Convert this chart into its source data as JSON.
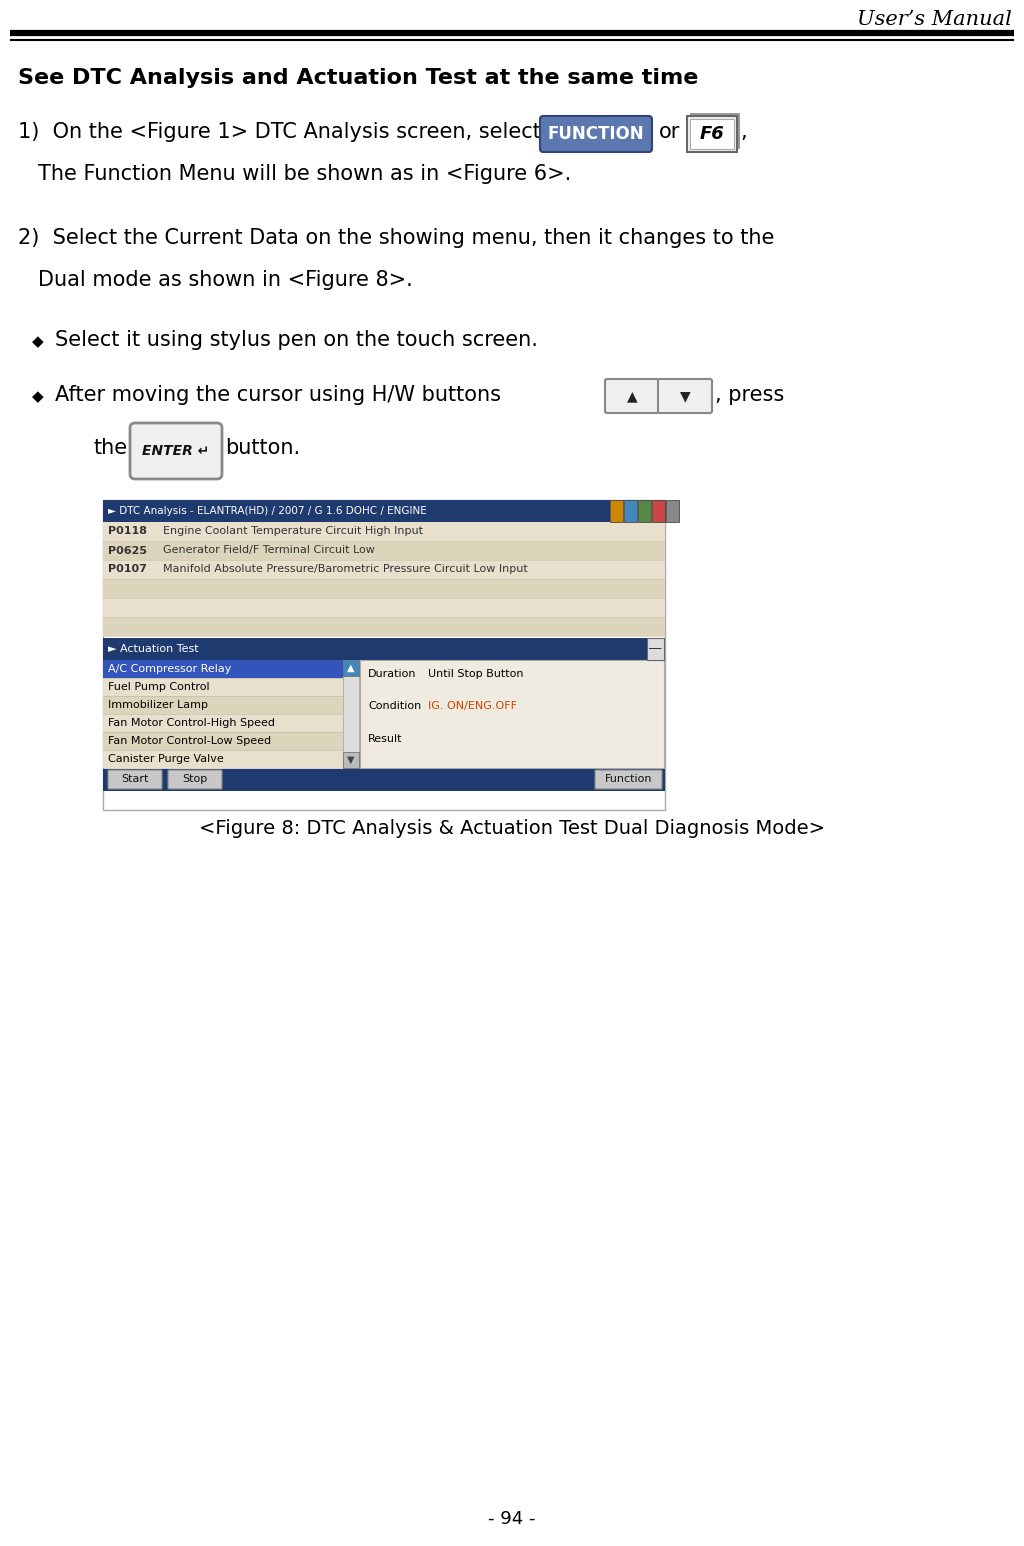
{
  "page_title": "User’s Manual",
  "page_number": "- 94 -",
  "background_color": "#ffffff",
  "section_title": "See DTC Analysis and Actuation Test at the same time",
  "para1_text": "1)  On the <Figure 1> DTC Analysis screen, select",
  "para1_line2": "The Function Menu will be shown as in <Figure 6>.",
  "para2_line1": "2)  Select the Current Data on the showing menu, then it changes to the",
  "para2_line2": "Dual mode as shown in <Figure 8>.",
  "bullet1": "Select it using stylus pen on the touch screen.",
  "bullet2_part1": "After moving the cursor using H/W buttons",
  "bullet2_part2": ", press",
  "enter_line_pre": "the",
  "enter_line_post": "button.",
  "figure_caption": "<Figure 8: DTC Analysis & Actuation Test Dual Diagnosis Mode>",
  "function_btn_color": "#5b78b0",
  "function_btn_text": "FUNCTION",
  "function_btn_text_color": "#ffffff",
  "f6_btn_text": "F6",
  "enter_btn_text": "ENTER ↵",
  "screen_title_bar_color": "#1e3a6e",
  "screen_title_text": "► DTC Analysis - ELANTRA(HD) / 2007 / G 1.6 DOHC / ENGINE",
  "screen_title_text_color": "#ffffff",
  "screen_bg": "#e8e0cc",
  "dtc_rows": [
    {
      "code": "P0118",
      "desc": "Engine Coolant Temperature Circuit High Input"
    },
    {
      "code": "P0625",
      "desc": "Generator Field/F Terminal Circuit Low"
    },
    {
      "code": "P0107",
      "desc": "Manifold Absolute Pressure/Barometric Pressure Circuit Low Input"
    }
  ],
  "dtc_empty_rows": 3,
  "actuation_title_bar_color": "#1e3a6e",
  "actuation_title_text": "► Actuation Test",
  "actuation_title_text_color": "#ffffff",
  "actuation_highlight_color": "#3355bb",
  "actuation_items": [
    "A/C Compressor Relay",
    "Fuel Pump Control",
    "Immobilizer Lamp",
    "Fan Motor Control-High Speed",
    "Fan Motor Control-Low Speed",
    "Canister Purge Valve"
  ],
  "right_panel_bg": "#f0ebe0",
  "right_panel_border": "#aaaaaa",
  "rp_label1": "Duration",
  "rp_value1": "Until Stop Button",
  "rp_label2": "Condition",
  "rp_value2": "IG. ON/ENG.OFF",
  "rp_value2_color": "#cc4400",
  "rp_label3": "Result",
  "bottom_bar_color": "#1e3a6e",
  "btn_start": "Start",
  "btn_stop": "Stop",
  "btn_function": "Function",
  "btn_bg": "#c8c8c8",
  "icon_colors": [
    "#cc8800",
    "#4488bb",
    "#558844",
    "#cc4444",
    "#888888"
  ],
  "scroll_up_color": "#4488bb",
  "text_font_size": 15,
  "title_font_size": 16
}
